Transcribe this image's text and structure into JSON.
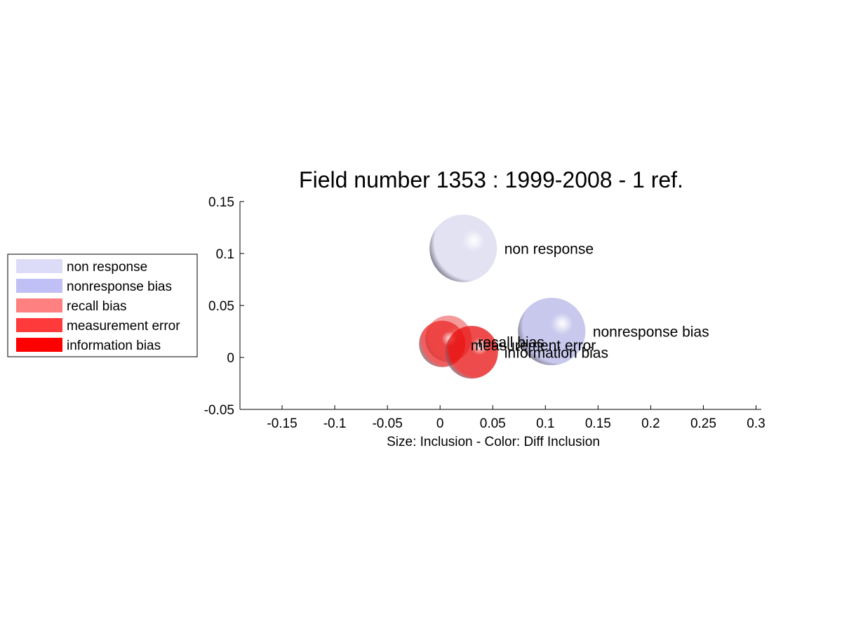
{
  "chart_data": {
    "type": "scatter",
    "title": "Field number 1353 : 1999-2008  - 1 ref.",
    "xlabel": "Size: Inclusion - Color: Diff Inclusion",
    "ylabel": "",
    "xlim": [
      -0.19,
      0.305
    ],
    "ylim": [
      -0.05,
      0.15
    ],
    "x_ticks": [
      -0.15,
      -0.1,
      -0.05,
      0,
      0.05,
      0.1,
      0.15,
      0.2,
      0.25,
      0.3
    ],
    "x_tick_labels": [
      "-0.15",
      "-0.1",
      "-0.05",
      "0",
      "0.05",
      "0.1",
      "0.15",
      "0.2",
      "0.25",
      "0.3"
    ],
    "y_ticks": [
      -0.05,
      0,
      0.05,
      0.1,
      0.15
    ],
    "y_tick_labels": [
      "-0.05",
      "0",
      "0.05",
      "0.1",
      "0.15"
    ],
    "grid": false,
    "legend_position": "left",
    "points": [
      {
        "name": "non response",
        "x": 0.022,
        "y": 0.105,
        "size": 0.032,
        "color": "#e0e0f2"
      },
      {
        "name": "nonresponse bias",
        "x": 0.106,
        "y": 0.025,
        "size": 0.032,
        "color": "#c4c4ec"
      },
      {
        "name": "recall bias",
        "x": 0.008,
        "y": 0.018,
        "size": 0.022,
        "color": "#f07878"
      },
      {
        "name": "measurement error",
        "x": 0.002,
        "y": 0.013,
        "size": 0.022,
        "color": "#ec2828"
      },
      {
        "name": "information bias",
        "x": 0.03,
        "y": 0.005,
        "size": 0.025,
        "color": "#e81010"
      }
    ],
    "point_labels": [
      {
        "text": "non response",
        "x": 0.061,
        "y": 0.1045
      },
      {
        "text": "nonresponse bias",
        "x": 0.145,
        "y": 0.0245
      },
      {
        "text": "recall bias",
        "x": 0.036,
        "y": 0.0145
      },
      {
        "text": "measurement error",
        "x": 0.029,
        "y": 0.0115
      },
      {
        "text": "information bias",
        "x": 0.061,
        "y": 0.0045
      }
    ],
    "legend": [
      {
        "label": "non response",
        "color": "#dcdcf8"
      },
      {
        "label": "nonresponse bias",
        "color": "#c0c0f6"
      },
      {
        "label": "recall bias",
        "color": "#ff8080"
      },
      {
        "label": "measurement error",
        "color": "#ff3a3a"
      },
      {
        "label": "information bias",
        "color": "#ff0000"
      }
    ]
  }
}
